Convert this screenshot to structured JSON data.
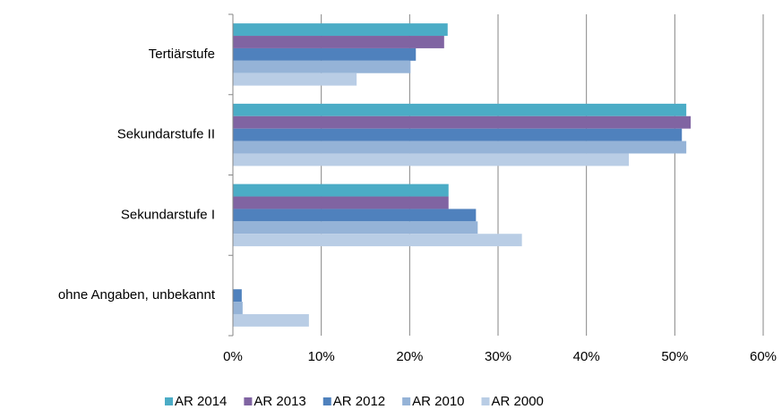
{
  "chart_data": {
    "type": "hbar",
    "categories": [
      "Tertiärstufe",
      "Sekundarstufe II",
      "Sekundarstufe I",
      "ohne Angaben, unbekannt"
    ],
    "series": [
      {
        "name": "AR 2014",
        "color": "#4bacc6",
        "values": [
          24.3,
          51.3,
          24.4,
          0
        ]
      },
      {
        "name": "AR 2013",
        "color": "#8064a2",
        "values": [
          23.9,
          51.8,
          24.4,
          0
        ]
      },
      {
        "name": "AR 2012",
        "color": "#4f81bd",
        "values": [
          20.7,
          50.8,
          27.5,
          1.0
        ]
      },
      {
        "name": "AR 2010",
        "color": "#95b3d7",
        "values": [
          20.1,
          51.3,
          27.7,
          1.1
        ]
      },
      {
        "name": "AR 2000",
        "color": "#b9cde5",
        "values": [
          14.0,
          44.8,
          32.7,
          8.6
        ]
      }
    ],
    "xlim": [
      0,
      60
    ],
    "xticks": [
      {
        "value": 0,
        "label": "0%"
      },
      {
        "value": 10,
        "label": "10%"
      },
      {
        "value": 20,
        "label": "20%"
      },
      {
        "value": 30,
        "label": "30%"
      },
      {
        "value": 40,
        "label": "40%"
      },
      {
        "value": 50,
        "label": "50%"
      },
      {
        "value": 60,
        "label": "60%"
      }
    ],
    "grid": true,
    "legend": "bottom"
  }
}
